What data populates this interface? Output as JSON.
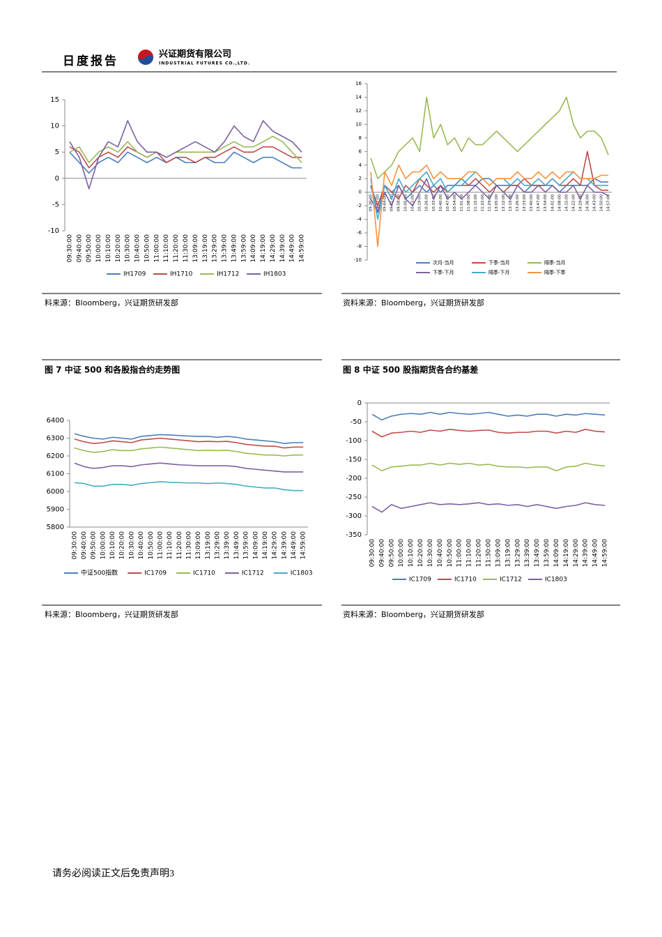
{
  "header": {
    "title": "日度报告",
    "company": "兴证期货有限公司",
    "company_en": "INDUSTRIAL FUTURES CO.,LTD."
  },
  "chart_data": [
    {
      "type": "line",
      "categories": [
        "09:30:00",
        "09:40:00",
        "09:50:00",
        "10:00:00",
        "10:10:00",
        "10:20:00",
        "10:30:00",
        "10:40:00",
        "10:50:00",
        "11:00:00",
        "11:10:00",
        "11:20:00",
        "11:30:00",
        "13:09:00",
        "13:19:00",
        "13:29:00",
        "13:39:00",
        "13:49:00",
        "13:59:00",
        "14:09:00",
        "14:19:00",
        "14:29:00",
        "14:39:00",
        "14:49:00",
        "14:59:00"
      ],
      "ylim": [
        -10,
        15
      ],
      "yticks": [
        -10,
        -5,
        0,
        5,
        10,
        15
      ],
      "series": [
        {
          "name": "IH1709",
          "color": "#4a7ebb",
          "values": [
            5,
            3,
            1,
            3,
            4,
            3,
            5,
            4,
            3,
            4,
            3,
            4,
            3,
            3,
            4,
            3,
            3,
            5,
            4,
            3,
            4,
            4,
            3,
            2,
            2
          ]
        },
        {
          "name": "IH1710",
          "color": "#be4b48",
          "values": [
            6,
            5,
            2,
            4,
            5,
            4,
            6,
            5,
            4,
            5,
            3,
            4,
            4,
            3,
            4,
            4,
            5,
            6,
            5,
            5,
            6,
            6,
            5,
            4,
            4
          ]
        },
        {
          "name": "IH1712",
          "color": "#98b954",
          "values": [
            5,
            6,
            3,
            5,
            6,
            5,
            7,
            5,
            4,
            5,
            4,
            5,
            5,
            5,
            5,
            5,
            6,
            7,
            6,
            6,
            7,
            8,
            7,
            5,
            3
          ]
        },
        {
          "name": "IH1803",
          "color": "#7d60a0",
          "values": [
            7,
            4,
            -2,
            4,
            7,
            6,
            11,
            7,
            5,
            5,
            4,
            5,
            6,
            7,
            6,
            5,
            7,
            10,
            8,
            7,
            11,
            9,
            8,
            7,
            5
          ]
        }
      ],
      "source": "料来源：Bloomberg，兴证期货研发部"
    },
    {
      "type": "line",
      "categories": [
        "09:30:00",
        "09:37:00",
        "09:44:00",
        "09:51:00",
        "09:58:00",
        "10:05:00",
        "10:12:00",
        "10:19:00",
        "10:26:00",
        "10:33:00",
        "10:40:00",
        "10:47:00",
        "10:54:00",
        "11:01:00",
        "11:08:00",
        "11:15:00",
        "11:22:00",
        "11:29:00",
        "13:05:00",
        "13:12:00",
        "13:19:00",
        "13:26:00",
        "13:33:00",
        "13:40:00",
        "13:47:00",
        "13:54:00",
        "14:01:00",
        "14:08:00",
        "14:15:00",
        "14:22:00",
        "14:29:00",
        "14:36:00",
        "14:43:00",
        "14:50:00",
        "14:57:00"
      ],
      "ylim": [
        -10,
        16
      ],
      "yticks": [
        -10,
        -8,
        -6,
        -4,
        -2,
        0,
        2,
        4,
        6,
        8,
        10,
        12,
        14,
        16
      ],
      "series": [
        {
          "name": "次月-当月",
          "color": "#4a7ebb",
          "values": [
            -1,
            -3,
            1,
            0,
            1,
            -1,
            0,
            1,
            0,
            1,
            0,
            1,
            1,
            2,
            1,
            1,
            2,
            2,
            1,
            1,
            1,
            1,
            0,
            1,
            1,
            1,
            1,
            0,
            1,
            1,
            1,
            1,
            2,
            1.5,
            1.5
          ]
        },
        {
          "name": "下季-当月",
          "color": "#be4b48",
          "values": [
            1,
            -2,
            1,
            0,
            -1,
            1,
            0,
            2,
            1,
            0,
            1,
            0,
            1,
            1,
            1,
            2,
            1,
            0,
            1,
            0,
            1,
            1,
            2,
            1,
            1,
            1,
            2,
            1,
            1,
            2,
            1,
            6,
            1,
            0.3,
            0.3
          ]
        },
        {
          "name": "隔季-当月",
          "color": "#98b954",
          "values": [
            5,
            2,
            3,
            4,
            6,
            7,
            8,
            6,
            14,
            8,
            10,
            7,
            8,
            6,
            8,
            7,
            7,
            8,
            9,
            8,
            7,
            6,
            7,
            8,
            9,
            10,
            11,
            12,
            14,
            10,
            8,
            9,
            9,
            8,
            5.5
          ]
        },
        {
          "name": "下季-下月",
          "color": "#7d60a0",
          "values": [
            1,
            -3,
            0,
            -2,
            1,
            -1,
            -2,
            0,
            2,
            -1,
            1,
            -1,
            0,
            -1,
            0,
            1,
            0,
            -1,
            1,
            0,
            -1,
            1,
            0,
            0,
            1,
            0,
            1,
            0,
            0,
            1,
            -1,
            1,
            0,
            0,
            -0.5
          ]
        },
        {
          "name": "隔季-下月",
          "color": "#46aac5",
          "values": [
            2,
            -4,
            1,
            -1,
            2,
            0,
            1,
            2,
            3,
            1,
            2,
            0,
            1,
            1,
            2,
            3,
            2,
            1,
            2,
            2,
            1,
            2,
            1,
            1,
            2,
            1,
            2,
            1,
            2,
            3,
            2,
            2,
            1,
            1,
            1
          ]
        },
        {
          "name": "隔季-下季",
          "color": "#f69240",
          "values": [
            3,
            -8,
            3,
            1,
            4,
            2,
            3,
            3,
            4,
            2,
            3,
            2,
            2,
            2,
            3,
            3,
            2,
            1,
            2,
            2,
            2,
            3,
            2,
            2,
            3,
            2,
            3,
            2,
            3,
            3,
            2,
            2,
            2,
            2.5,
            2.5
          ]
        }
      ],
      "source": "资料来源：Bloomberg，兴证期货研发部"
    },
    {
      "type": "line",
      "title": "图 7 中证 500 和各股指合约走势图",
      "categories": [
        "09:30:00",
        "09:40:00",
        "09:50:00",
        "10:00:00",
        "10:10:00",
        "10:20:00",
        "10:30:00",
        "10:40:00",
        "10:50:00",
        "11:00:00",
        "11:10:00",
        "11:20:00",
        "11:30:00",
        "13:09:00",
        "13:19:00",
        "13:29:00",
        "13:39:00",
        "13:49:00",
        "13:59:00",
        "14:09:00",
        "14:19:00",
        "14:29:00",
        "14:39:00",
        "14:49:00",
        "14:59:00"
      ],
      "ylim": [
        5800,
        6400
      ],
      "yticks": [
        5800,
        5900,
        6000,
        6100,
        6200,
        6300,
        6400
      ],
      "series": [
        {
          "name": "中证500指数",
          "color": "#4a7ebb",
          "values": [
            6325,
            6310,
            6300,
            6295,
            6305,
            6300,
            6295,
            6310,
            6315,
            6320,
            6318,
            6315,
            6312,
            6310,
            6310,
            6305,
            6310,
            6305,
            6295,
            6290,
            6285,
            6280,
            6270,
            6275,
            6275
          ]
        },
        {
          "name": "IC1709",
          "color": "#be4b48",
          "values": [
            6295,
            6280,
            6270,
            6275,
            6285,
            6280,
            6275,
            6290,
            6295,
            6300,
            6295,
            6290,
            6285,
            6280,
            6282,
            6280,
            6282,
            6275,
            6265,
            6260,
            6255,
            6255,
            6245,
            6250,
            6250
          ]
        },
        {
          "name": "IC1710",
          "color": "#98b954",
          "values": [
            6245,
            6230,
            6220,
            6225,
            6235,
            6230,
            6230,
            6240,
            6245,
            6250,
            6245,
            6240,
            6235,
            6230,
            6232,
            6230,
            6232,
            6225,
            6215,
            6210,
            6205,
            6205,
            6200,
            6205,
            6205
          ]
        },
        {
          "name": "IC1712",
          "color": "#7d60a0",
          "values": [
            6160,
            6140,
            6130,
            6135,
            6145,
            6145,
            6140,
            6150,
            6155,
            6160,
            6155,
            6150,
            6148,
            6145,
            6145,
            6145,
            6145,
            6140,
            6130,
            6125,
            6120,
            6115,
            6110,
            6110,
            6110
          ]
        },
        {
          "name": "IC1803",
          "color": "#46aac5",
          "values": [
            6050,
            6045,
            6030,
            6030,
            6040,
            6040,
            6035,
            6045,
            6050,
            6055,
            6052,
            6050,
            6048,
            6048,
            6045,
            6048,
            6045,
            6040,
            6030,
            6025,
            6020,
            6020,
            6010,
            6005,
            6005
          ]
        }
      ],
      "source": "料来源：Bloomberg，兴证期货研发部"
    },
    {
      "type": "line",
      "title": "图 8 中证 500 股指期货各合约基差",
      "categories": [
        "09:30:00",
        "09:40:00",
        "09:50:00",
        "10:00:00",
        "10:10:00",
        "10:20:00",
        "10:30:00",
        "10:40:00",
        "10:50:00",
        "11:00:00",
        "11:10:00",
        "11:20:00",
        "11:30:00",
        "13:09:00",
        "13:19:00",
        "13:29:00",
        "13:39:00",
        "13:49:00",
        "13:59:00",
        "14:09:00",
        "14:19:00",
        "14:29:00",
        "14:39:00",
        "14:49:00",
        "14:59:00"
      ],
      "ylim": [
        -350,
        0
      ],
      "yticks": [
        -350,
        -300,
        -250,
        -200,
        -150,
        -100,
        -50,
        0
      ],
      "series": [
        {
          "name": "IC1709",
          "color": "#4a7ebb",
          "values": [
            -30,
            -45,
            -35,
            -30,
            -28,
            -30,
            -25,
            -30,
            -25,
            -28,
            -30,
            -28,
            -25,
            -30,
            -35,
            -32,
            -35,
            -30,
            -30,
            -35,
            -30,
            -32,
            -28,
            -30,
            -32
          ]
        },
        {
          "name": "IC1710",
          "color": "#be4b48",
          "values": [
            -75,
            -90,
            -80,
            -78,
            -75,
            -78,
            -72,
            -75,
            -70,
            -73,
            -75,
            -73,
            -72,
            -78,
            -80,
            -78,
            -78,
            -75,
            -75,
            -80,
            -75,
            -78,
            -70,
            -75,
            -77
          ]
        },
        {
          "name": "IC1712",
          "color": "#98b954",
          "values": [
            -165,
            -180,
            -170,
            -168,
            -165,
            -165,
            -160,
            -165,
            -160,
            -163,
            -160,
            -165,
            -163,
            -168,
            -170,
            -170,
            -172,
            -170,
            -170,
            -180,
            -170,
            -168,
            -160,
            -165,
            -167
          ]
        },
        {
          "name": "IC1803",
          "color": "#7d60a0",
          "values": [
            -275,
            -290,
            -270,
            -280,
            -275,
            -270,
            -265,
            -270,
            -268,
            -270,
            -268,
            -265,
            -270,
            -268,
            -272,
            -270,
            -275,
            -270,
            -275,
            -280,
            -275,
            -272,
            -265,
            -270,
            -272
          ]
        }
      ],
      "source": "资料来源：Bloomberg，兴证期货研发部"
    }
  ],
  "footer": "请务必阅读正文后免责声明3"
}
